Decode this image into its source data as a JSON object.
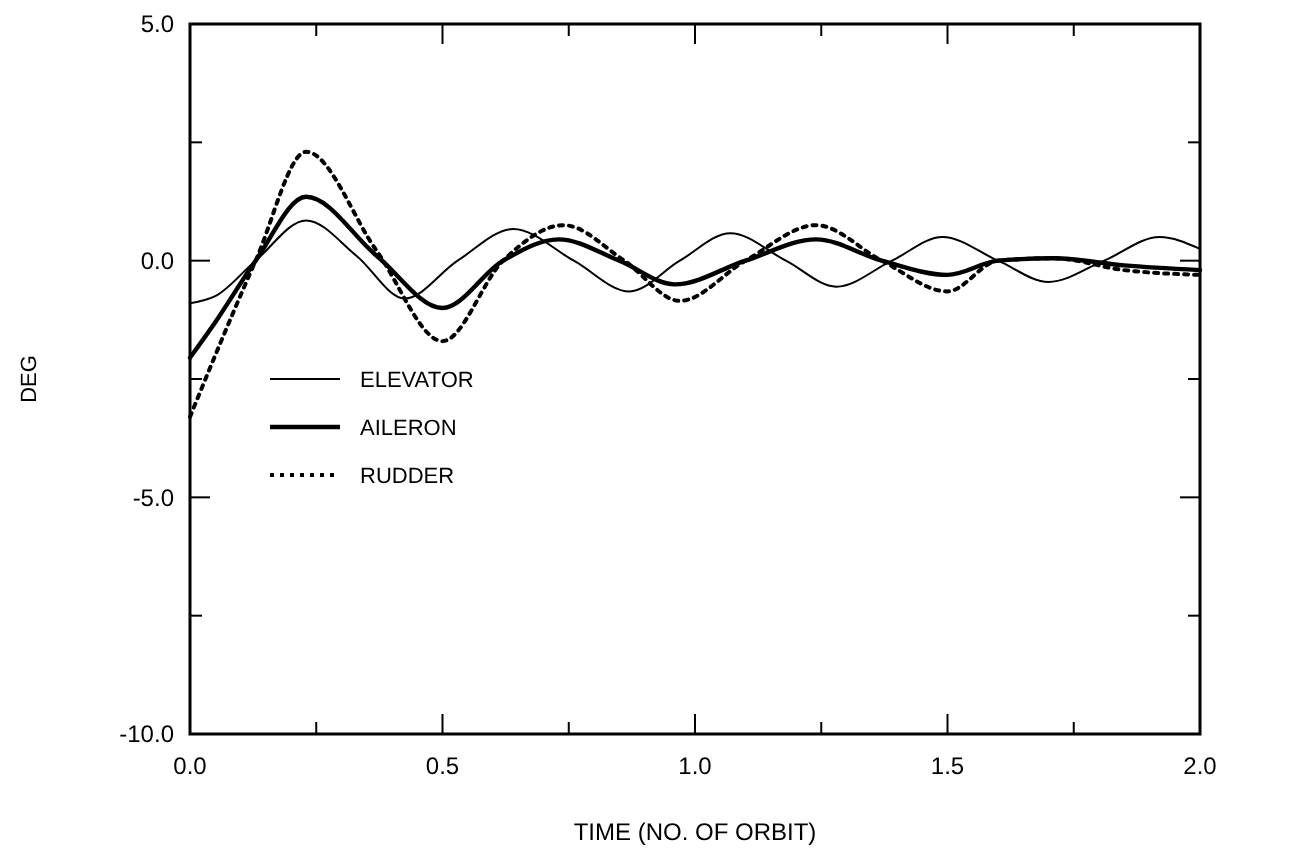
{
  "chart_data": {
    "type": "line",
    "xlabel": "TIME (NO. OF ORBIT)",
    "ylabel": "DEG",
    "xlim": [
      0,
      2
    ],
    "ylim": [
      -10,
      5
    ],
    "xticks": [
      {
        "value": 0,
        "label": "0.0"
      },
      {
        "value": 0.25,
        "label": null
      },
      {
        "value": 0.5,
        "label": "0.5"
      },
      {
        "value": 0.75,
        "label": null
      },
      {
        "value": 1,
        "label": "1.0"
      },
      {
        "value": 1.25,
        "label": null
      },
      {
        "value": 1.5,
        "label": "1.5"
      },
      {
        "value": 1.75,
        "label": null
      },
      {
        "value": 2,
        "label": "2.0"
      }
    ],
    "yticks": [
      {
        "value": -10,
        "label": "-10.0"
      },
      {
        "value": -7.5,
        "label": null
      },
      {
        "value": -5,
        "label": "-5.0"
      },
      {
        "value": -2.5,
        "label": null
      },
      {
        "value": 0,
        "label": "0.0"
      },
      {
        "value": 2.5,
        "label": null
      },
      {
        "value": 5,
        "label": "5.0"
      }
    ],
    "grid": false,
    "legend": "left",
    "series": [
      {
        "name": "ELEVATOR",
        "color": "#000000",
        "line_style": "solid",
        "x": [
          0,
          0.05,
          0.13,
          0.23,
          0.33,
          0.425,
          0.53,
          0.64,
          0.76,
          0.87,
          0.97,
          1.07,
          1.18,
          1.28,
          1.39,
          1.49,
          1.6,
          1.7,
          1.81,
          1.92,
          2.0
        ],
        "values": [
          -0.9,
          -0.75,
          0,
          0.85,
          0.1,
          -0.8,
          0,
          0.67,
          0,
          -0.65,
          0,
          0.58,
          0,
          -0.55,
          0,
          0.5,
          0,
          -0.45,
          0,
          0.5,
          0.25
        ]
      },
      {
        "name": "AILERON",
        "color": "#000000",
        "line_style": "solid",
        "x": [
          0,
          0.05,
          0.13,
          0.23,
          0.37,
          0.5,
          0.62,
          0.73,
          0.85,
          0.96,
          1.1,
          1.24,
          1.37,
          1.5,
          1.6,
          1.71,
          1.85,
          2.0
        ],
        "values": [
          -2.05,
          -1.3,
          0,
          1.35,
          0.1,
          -1.0,
          0,
          0.45,
          0,
          -0.5,
          0,
          0.45,
          0,
          -0.3,
          0,
          0.05,
          -0.1,
          -0.2
        ]
      },
      {
        "name": "RUDDER",
        "color": "#000000",
        "line_style": "dotted",
        "x": [
          0,
          0.05,
          0.13,
          0.23,
          0.37,
          0.5,
          0.62,
          0.74,
          0.86,
          0.97,
          1.1,
          1.24,
          1.37,
          1.5,
          1.6,
          1.71,
          1.85,
          2.0
        ],
        "values": [
          -3.3,
          -2.0,
          0,
          2.3,
          0.2,
          -1.7,
          0,
          0.75,
          0,
          -0.85,
          0,
          0.75,
          0,
          -0.65,
          0,
          0.05,
          -0.2,
          -0.3
        ]
      }
    ]
  }
}
